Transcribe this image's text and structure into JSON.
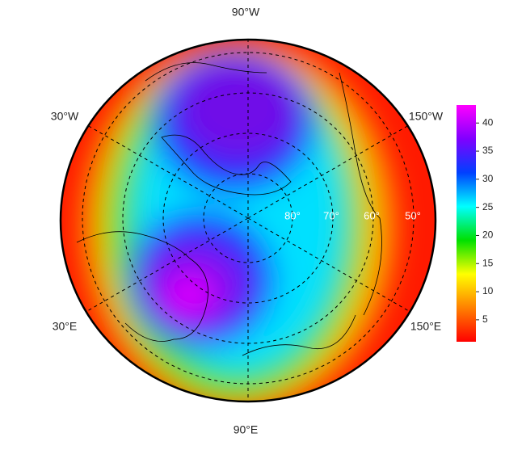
{
  "map": {
    "longitude_labels": [
      "90°W",
      "30°W",
      "150°W",
      "30°E",
      "150°E",
      "90°E"
    ],
    "latitude_labels": [
      "80°",
      "70°",
      "60°",
      "50°"
    ]
  },
  "colorbar": {
    "range": [
      1.1,
      43.2
    ],
    "ticks": [
      5,
      10,
      15,
      20,
      25,
      30,
      35,
      40
    ],
    "colors": [
      "#ff0000",
      "#ff8000",
      "#ffff00",
      "#00e000",
      "#00ffff",
      "#0040ff",
      "#8000ff",
      "#ff00ff"
    ]
  }
}
